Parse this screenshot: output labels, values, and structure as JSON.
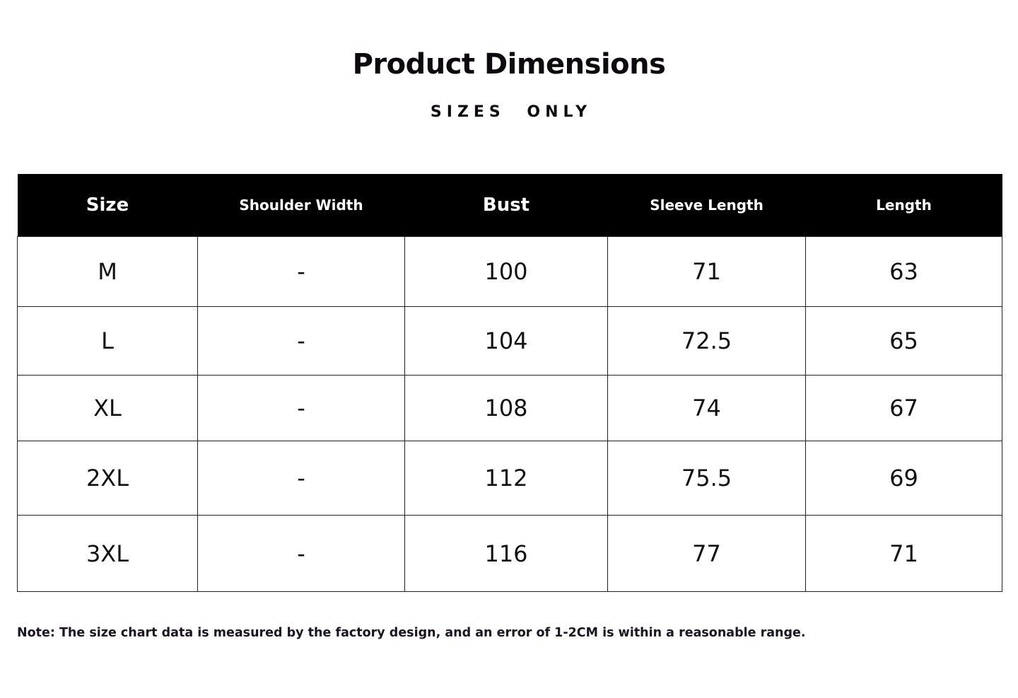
{
  "title": "Product Dimensions",
  "subtitle": "SIZES ONLY",
  "table": {
    "headers": [
      "Size",
      "Shoulder Width",
      "Bust",
      "Sleeve Length",
      "Length"
    ],
    "rows": [
      [
        "M",
        "-",
        "100",
        "71",
        "63"
      ],
      [
        "L",
        "-",
        "104",
        "72.5",
        "65"
      ],
      [
        "XL",
        "-",
        "108",
        "74",
        "67"
      ],
      [
        "2XL",
        "-",
        "112",
        "75.5",
        "69"
      ],
      [
        "3XL",
        "-",
        "116",
        "77",
        "71"
      ]
    ]
  },
  "note": "Note: The size chart data is measured by the factory design, and an error of 1-2CM is within a reasonable range."
}
